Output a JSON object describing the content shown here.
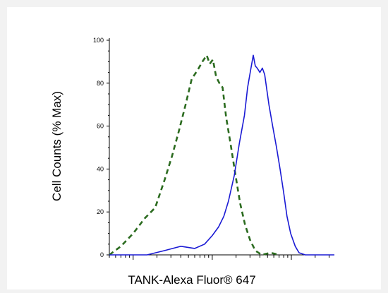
{
  "chart_data": {
    "type": "line",
    "title": "",
    "xlabel": "TANK-Alexa Fluor® 647",
    "ylabel": "Cell Counts (% Max)",
    "x_scale": "log",
    "ylim": [
      0,
      100
    ],
    "yticks": [
      "0",
      "20",
      "40",
      "60",
      "80",
      "100"
    ],
    "grid": false,
    "legend": "none",
    "series": [
      {
        "style": "dashed",
        "color": "#2b6b1f",
        "points": [
          [
            0.5,
            0
          ],
          [
            0.7,
            4
          ],
          [
            1.0,
            10
          ],
          [
            1.4,
            17
          ],
          [
            1.9,
            22
          ],
          [
            2.5,
            35
          ],
          [
            3.1,
            46
          ],
          [
            3.8,
            58
          ],
          [
            4.6,
            70
          ],
          [
            5.5,
            82
          ],
          [
            6.5,
            86
          ],
          [
            7.5,
            90
          ],
          [
            8.5,
            93
          ],
          [
            9.3,
            89
          ],
          [
            10.2,
            91
          ],
          [
            11.2,
            83
          ],
          [
            12.3,
            80
          ],
          [
            13.5,
            78
          ],
          [
            15.0,
            64
          ],
          [
            17.0,
            52
          ],
          [
            19.5,
            38
          ],
          [
            22.5,
            24
          ],
          [
            26.0,
            14
          ],
          [
            30.0,
            7
          ],
          [
            35.0,
            2
          ],
          [
            42.0,
            0
          ],
          [
            55.0,
            1
          ],
          [
            70.0,
            0
          ]
        ]
      },
      {
        "style": "solid",
        "color": "#1a1ad4",
        "points": [
          [
            0.5,
            0
          ],
          [
            1.5,
            0
          ],
          [
            2.5,
            2
          ],
          [
            4.0,
            4
          ],
          [
            6.0,
            3
          ],
          [
            8.0,
            5
          ],
          [
            10.0,
            9
          ],
          [
            12.0,
            13
          ],
          [
            14.0,
            18
          ],
          [
            16.0,
            25
          ],
          [
            19.0,
            37
          ],
          [
            22.0,
            52
          ],
          [
            25.5,
            65
          ],
          [
            28.0,
            78
          ],
          [
            30.5,
            86
          ],
          [
            33.0,
            93
          ],
          [
            35.0,
            88
          ],
          [
            37.0,
            87
          ],
          [
            40.0,
            85
          ],
          [
            43.0,
            87
          ],
          [
            46.0,
            84
          ],
          [
            52.0,
            70
          ],
          [
            58.0,
            60
          ],
          [
            65.0,
            50
          ],
          [
            72.0,
            40
          ],
          [
            80.0,
            29
          ],
          [
            88.0,
            18
          ],
          [
            98.0,
            10
          ],
          [
            112.0,
            4
          ],
          [
            125.0,
            1
          ],
          [
            150.0,
            0
          ],
          [
            250.0,
            0
          ],
          [
            350.0,
            0
          ]
        ]
      }
    ]
  }
}
